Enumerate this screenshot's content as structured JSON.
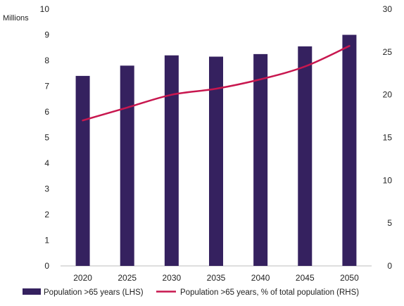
{
  "chart_data": {
    "type": "bar+line",
    "categories": [
      "2020",
      "2025",
      "2030",
      "2035",
      "2040",
      "2045",
      "2050"
    ],
    "left_axis": {
      "label": "Millions",
      "ylim": [
        0,
        10
      ],
      "ticks": [
        "0",
        "1",
        "2",
        "3",
        "4",
        "5",
        "6",
        "7",
        "8",
        "9",
        "10"
      ]
    },
    "right_axis": {
      "label": "",
      "ylim": [
        0,
        30
      ],
      "ticks": [
        "0",
        "5",
        "10",
        "15",
        "20",
        "25",
        "30"
      ]
    },
    "series": [
      {
        "name": "Population >65 years (LHS)",
        "type": "bar",
        "axis": "left",
        "color": "#35215f",
        "values": [
          7.4,
          7.8,
          8.2,
          8.15,
          8.25,
          8.55,
          9.0
        ]
      },
      {
        "name": "Population >65 years, % of total population (RHS)",
        "type": "line",
        "axis": "right",
        "color": "#c8174f",
        "values": [
          17.0,
          18.5,
          20.0,
          20.7,
          21.8,
          23.3,
          25.7
        ]
      }
    ],
    "grid": false,
    "legend_position": "bottom"
  }
}
